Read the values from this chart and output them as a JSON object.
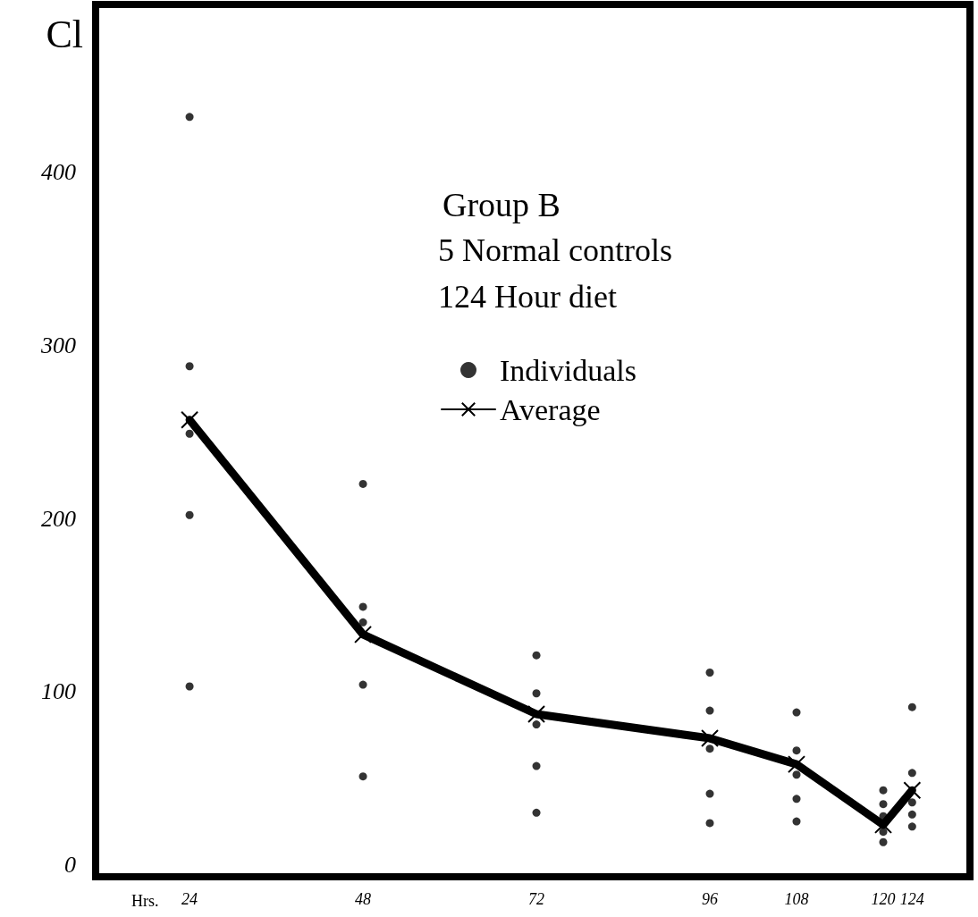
{
  "chart_data": {
    "type": "line",
    "title": "Group B",
    "annotations": [
      "5 Normal controls",
      "124 Hour diet"
    ],
    "xlabel": "Hrs.",
    "ylabel": "Cl",
    "x": [
      24,
      48,
      72,
      96,
      108,
      120,
      124
    ],
    "series": [
      {
        "name": "Individuals",
        "type": "scatter",
        "color": "#000000",
        "marker": "circle",
        "x": [
          24,
          24,
          24,
          24,
          24,
          48,
          48,
          48,
          48,
          48,
          72,
          72,
          72,
          72,
          72,
          96,
          96,
          96,
          96,
          96,
          108,
          108,
          108,
          108,
          108,
          120,
          120,
          120,
          120,
          120,
          124,
          124,
          124,
          124,
          124
        ],
        "values": [
          432,
          288,
          249,
          202,
          103,
          220,
          149,
          140,
          104,
          51,
          121,
          99,
          81,
          57,
          30,
          111,
          89,
          67,
          41,
          24,
          88,
          66,
          52,
          38,
          25,
          43,
          35,
          28,
          19,
          13,
          91,
          53,
          36,
          29,
          22
        ]
      },
      {
        "name": "Average",
        "type": "line",
        "color": "#000000",
        "marker": "cross",
        "line_style": "solid",
        "values": [
          257,
          133,
          87,
          73,
          58,
          23,
          43
        ]
      }
    ],
    "xlim": [
      11,
      132
    ],
    "xticks": [
      24,
      48,
      72,
      96,
      108,
      120,
      124
    ],
    "ylim": [
      -7,
      497
    ],
    "yticks": [
      0,
      100,
      200,
      300,
      400
    ],
    "grid": false,
    "legend": "top right"
  }
}
